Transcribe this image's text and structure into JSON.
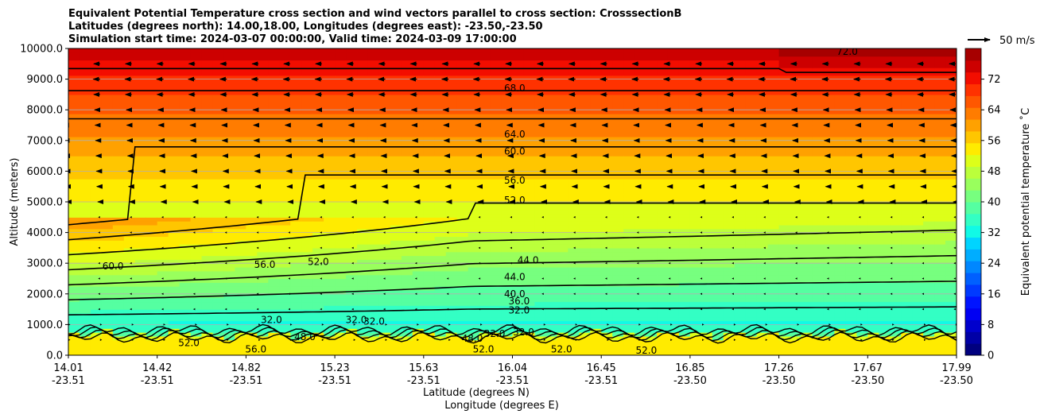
{
  "chart_data": {
    "type": "heatmap",
    "title_lines": [
      "Equivalent Potential Temperature cross section and wind vectors parallel to cross section: CrosssectionB",
      "Latitudes (degrees north): 14.00,18.00, Longitudes (degrees east): -23.50,-23.50",
      "Simulation start time: 2024-03-07 00:00:00, Valid time: 2024-03-09 17:00:00"
    ],
    "ylabel": "Altitude (meters)",
    "xlabel_lat": "Latitude (degrees N)",
    "xlabel_lon": "Longitude (degrees E)",
    "ylim": [
      0,
      10000
    ],
    "yticks": [
      0,
      1000,
      2000,
      3000,
      4000,
      5000,
      6000,
      7000,
      8000,
      9000,
      10000
    ],
    "ytick_labels": [
      "0.0",
      "1000.0",
      "2000.0",
      "3000.0",
      "4000.0",
      "5000.0",
      "6000.0",
      "7000.0",
      "8000.0",
      "9000.0",
      "10000.0"
    ],
    "xlim": [
      14.01,
      17.99
    ],
    "xticks": [
      {
        "lat": "14.01",
        "lon": "-23.51"
      },
      {
        "lat": "14.42",
        "lon": "-23.51"
      },
      {
        "lat": "14.82",
        "lon": "-23.51"
      },
      {
        "lat": "15.23",
        "lon": "-23.51"
      },
      {
        "lat": "15.63",
        "lon": "-23.51"
      },
      {
        "lat": "16.04",
        "lon": "-23.51"
      },
      {
        "lat": "16.45",
        "lon": "-23.51"
      },
      {
        "lat": "16.85",
        "lon": "-23.50"
      },
      {
        "lat": "17.26",
        "lon": "-23.50"
      },
      {
        "lat": "17.67",
        "lon": "-23.50"
      },
      {
        "lat": "17.99",
        "lon": "-23.50"
      }
    ],
    "colorbar": {
      "label": "Equivalent potential temperature $^\\circ$C",
      "label_display": "Equivalent potential temperature ˚C",
      "range": [
        0,
        80
      ],
      "ticks": [
        "0",
        "8",
        "16",
        "24",
        "32",
        "40",
        "48",
        "56",
        "64",
        "72"
      ],
      "colors": [
        "#00007f",
        "#0000a6",
        "#0000cd",
        "#0000f3",
        "#0014ff",
        "#003aff",
        "#0060ff",
        "#0087ff",
        "#00adff",
        "#00d4ff",
        "#11fae6",
        "#33ffc4",
        "#55ffa1",
        "#77ff7f",
        "#99ff5d",
        "#bbff3b",
        "#ddff19",
        "#ffeb00",
        "#ffc600",
        "#ffa100",
        "#ff7c00",
        "#ff5700",
        "#ff3200",
        "#f30d00",
        "#cd0000",
        "#a60000"
      ]
    },
    "quiver_key": "50 m/s",
    "contour_levels": [
      "32.0",
      "36.0",
      "40.0",
      "44.0",
      "48.0",
      "52.0",
      "56.0",
      "60.0",
      "64.0",
      "68.0",
      "72.0"
    ],
    "contour_labels": [
      {
        "text": "68.0",
        "lat": 16.01,
        "alt": 8700
      },
      {
        "text": "64.0",
        "lat": 16.01,
        "alt": 7200
      },
      {
        "text": "60.0",
        "lat": 16.01,
        "alt": 6650
      },
      {
        "text": "56.0",
        "lat": 16.01,
        "alt": 5700
      },
      {
        "text": "52.0",
        "lat": 16.01,
        "alt": 5050
      },
      {
        "text": "44.0",
        "lat": 16.01,
        "alt": 2550
      },
      {
        "text": "44.0",
        "lat": 16.07,
        "alt": 3100
      },
      {
        "text": "40.0",
        "lat": 16.01,
        "alt": 2000
      },
      {
        "text": "36.0",
        "lat": 16.03,
        "alt": 1760
      },
      {
        "text": "32.0",
        "lat": 16.03,
        "alt": 1460
      },
      {
        "text": "60.0",
        "lat": 14.21,
        "alt": 2900
      },
      {
        "text": "56.0",
        "lat": 14.89,
        "alt": 2950
      },
      {
        "text": "52.0",
        "lat": 15.13,
        "alt": 3050
      },
      {
        "text": "52.0",
        "lat": 14.55,
        "alt": 400
      },
      {
        "text": "48.0",
        "lat": 15.07,
        "alt": 600
      },
      {
        "text": "32.0",
        "lat": 14.92,
        "alt": 1150
      },
      {
        "text": "32.0",
        "lat": 15.3,
        "alt": 1150
      },
      {
        "text": "32.0",
        "lat": 15.38,
        "alt": 1100
      },
      {
        "text": "56.0",
        "lat": 14.85,
        "alt": 200
      },
      {
        "text": "48.0",
        "lat": 15.82,
        "alt": 550
      },
      {
        "text": "52.0",
        "lat": 15.87,
        "alt": 200
      },
      {
        "text": "32.0",
        "lat": 15.92,
        "alt": 700
      },
      {
        "text": "32.0",
        "lat": 16.05,
        "alt": 750
      },
      {
        "text": "52.0",
        "lat": 16.22,
        "alt": 200
      },
      {
        "text": "52.0",
        "lat": 16.6,
        "alt": 150
      },
      {
        "text": "72.0",
        "lat": 17.5,
        "alt": 9900
      }
    ],
    "wind_rows": [
      {
        "alt": 9500,
        "u": -14
      },
      {
        "alt": 9000,
        "u": -15
      },
      {
        "alt": 8500,
        "u": -14
      },
      {
        "alt": 8000,
        "u": -12
      },
      {
        "alt": 7500,
        "u": -11
      },
      {
        "alt": 7000,
        "u": -10
      },
      {
        "alt": 6500,
        "u": -9
      },
      {
        "alt": 6000,
        "u": -8
      },
      {
        "alt": 5500,
        "u": -7
      },
      {
        "alt": 5000,
        "u": -5
      },
      {
        "alt": 4500,
        "u": -3
      },
      {
        "alt": 4000,
        "u": -3
      },
      {
        "alt": 3500,
        "u": -2
      },
      {
        "alt": 3000,
        "u": -2
      },
      {
        "alt": 2500,
        "u": -1
      },
      {
        "alt": 2000,
        "u": -1
      },
      {
        "alt": 1500,
        "u": -1
      },
      {
        "alt": 1000,
        "u": 1
      },
      {
        "alt": 500,
        "u": 1
      }
    ]
  }
}
